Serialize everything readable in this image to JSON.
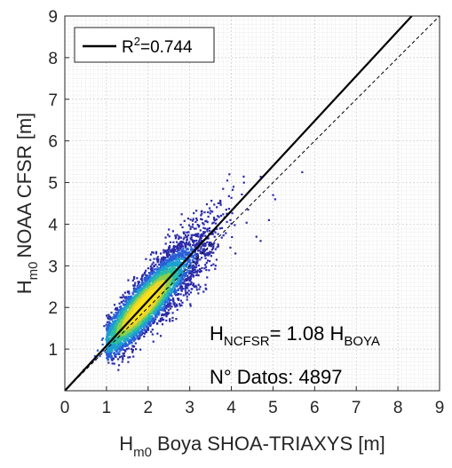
{
  "chart_data": {
    "type": "scatter",
    "xlabel": {
      "main": "H",
      "sub": "m0",
      "rest": " Boya SHOA-TRIAXYS [m]"
    },
    "ylabel": {
      "main": "H",
      "sub": "m0",
      "rest": "NOAA CFSR [m]"
    },
    "xlim": [
      0,
      9
    ],
    "ylim": [
      0,
      9
    ],
    "xticks": [
      "0",
      "1",
      "2",
      "3",
      "4",
      "5",
      "6",
      "7",
      "8",
      "9"
    ],
    "yticks": [
      "1",
      "2",
      "3",
      "4",
      "5",
      "6",
      "7",
      "8",
      "9"
    ],
    "grid": true,
    "minor_grid": true,
    "legend": {
      "position": "top-left",
      "entry_prefix": "R",
      "entry_sup": "2",
      "entry_value": "=0.744"
    },
    "fit_line": {
      "slope": 1.08,
      "intercept": 0,
      "style": "solid"
    },
    "identity_line": {
      "slope": 1,
      "intercept": 0,
      "style": "dashed"
    },
    "annotation_equation": {
      "lhs_main": "H",
      "lhs_sub": "NCFSR",
      "mid": "= 1.08 H",
      "rhs_sub": "BOYA"
    },
    "annotation_count": "N° Datos: 4897",
    "n_points": 4897,
    "density_colors": [
      "#2a2aa8",
      "#2a5fd6",
      "#1d9fd0",
      "#2cbfa0",
      "#8ccf4c",
      "#e7d52c",
      "#f9e21b"
    ],
    "point_cloud": {
      "x_range": [
        0.45,
        5.7
      ],
      "y_range": [
        0.5,
        5.3
      ],
      "density_peak": [
        1.9,
        2.1
      ],
      "outliers": [
        [
          5.0,
          4.7
        ],
        [
          5.05,
          4.6
        ],
        [
          5.7,
          5.25
        ],
        [
          4.7,
          3.6
        ],
        [
          4.9,
          4.1
        ],
        [
          4.3,
          5.0
        ],
        [
          3.95,
          5.2
        ],
        [
          3.9,
          5.05
        ],
        [
          4.05,
          4.9
        ],
        [
          3.8,
          4.85
        ],
        [
          4.4,
          4.35
        ],
        [
          4.6,
          3.7
        ]
      ]
    }
  }
}
